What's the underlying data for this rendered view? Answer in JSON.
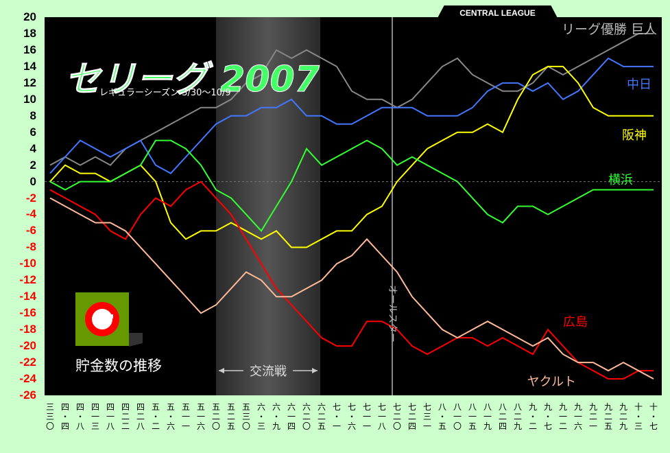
{
  "header": {
    "league": "CENTRAL LEAGUE"
  },
  "legend_box": {
    "label": "貯金数の推移"
  },
  "colors": {
    "background": "#ccffcc",
    "plot": "#000000",
    "neg_axis": "#ff0000",
    "logo_bg": "#669900",
    "logo_ring": "#ff0000"
  },
  "chart_data": {
    "type": "line",
    "title": "セリーグ 2007",
    "subtitle": "レギュラーシーズン 3/30〜10/9",
    "ylabel": "貯金数の推移",
    "ylim": [
      -26,
      20
    ],
    "yticks": [
      20,
      18,
      16,
      14,
      12,
      10,
      8,
      6,
      4,
      2,
      0,
      -2,
      -4,
      -6,
      -8,
      -10,
      -12,
      -14,
      -16,
      -18,
      -20,
      -22,
      -24,
      -26
    ],
    "x_dates": [
      [
        "三",
        "三",
        "〇"
      ],
      [
        "四",
        "・",
        "四"
      ],
      [
        "四",
        "・",
        "八"
      ],
      [
        "四",
        "一",
        "三"
      ],
      [
        "四",
        "一",
        "八"
      ],
      [
        "四",
        "二",
        "二"
      ],
      [
        "四",
        "二",
        "八"
      ],
      [
        "五",
        "・",
        "二"
      ],
      [
        "五",
        "・",
        "六"
      ],
      [
        "五",
        "一",
        "一"
      ],
      [
        "五",
        "一",
        "六"
      ],
      [
        "五",
        "二",
        "〇"
      ],
      [
        "五",
        "二",
        "五"
      ],
      [
        "五",
        "三",
        "〇"
      ],
      [
        "六",
        "・",
        "三"
      ],
      [
        "六",
        "・",
        "九"
      ],
      [
        "六",
        "一",
        "四"
      ],
      [
        "六",
        "二",
        "〇"
      ],
      [
        "六",
        "二",
        "五"
      ],
      [
        "七",
        "・",
        "一"
      ],
      [
        "七",
        "・",
        "六"
      ],
      [
        "七",
        "一",
        "一"
      ],
      [
        "七",
        "一",
        "八"
      ],
      [
        "七",
        "二",
        "〇"
      ],
      [
        "七",
        "二",
        "四"
      ],
      [
        "七",
        "三",
        "一"
      ],
      [
        "八",
        "・",
        "五"
      ],
      [
        "八",
        "一",
        "〇"
      ],
      [
        "八",
        "一",
        "五"
      ],
      [
        "八",
        "一",
        "九"
      ],
      [
        "八",
        "二",
        "四"
      ],
      [
        "八",
        "二",
        "九"
      ],
      [
        "九",
        "・",
        "二"
      ],
      [
        "九",
        "・",
        "七"
      ],
      [
        "九",
        "一",
        "二"
      ],
      [
        "九",
        "一",
        "六"
      ],
      [
        "九",
        "二",
        "一"
      ],
      [
        "九",
        "二",
        "五"
      ],
      [
        "九",
        "二",
        "九"
      ],
      [
        "十",
        "・",
        "三"
      ],
      [
        "十",
        "・",
        "七"
      ]
    ],
    "interleague_label": "交流戦",
    "interleague_range": [
      "五",
      "二",
      "二"
    ],
    "allstar_label": "オールスター",
    "champion_note": "リーグ優勝 巨人",
    "series": [
      {
        "name": "巨人",
        "color": "#888888",
        "values": [
          2,
          3,
          2,
          3,
          2,
          4,
          5,
          6,
          7,
          8,
          9,
          9,
          10,
          12,
          13,
          16,
          15,
          16,
          15,
          14,
          11,
          10,
          10,
          9,
          10,
          12,
          14,
          15,
          13,
          12,
          11,
          11,
          12,
          14,
          13,
          14,
          15,
          16,
          17,
          18,
          18
        ]
      },
      {
        "name": "中日",
        "color": "#4477ff",
        "values": [
          1,
          3,
          5,
          4,
          3,
          4,
          5,
          2,
          1,
          3,
          5,
          7,
          8,
          8,
          9,
          9,
          10,
          8,
          8,
          7,
          7,
          8,
          9,
          9,
          9,
          8,
          8,
          8,
          9,
          11,
          12,
          12,
          11,
          12,
          10,
          11,
          13,
          15,
          14,
          14,
          14
        ]
      },
      {
        "name": "阪神",
        "color": "#ffff00",
        "values": [
          0,
          2,
          1,
          1,
          0,
          1,
          2,
          0,
          -5,
          -7,
          -6,
          -6,
          -5,
          -6,
          -7,
          -6,
          -8,
          -8,
          -7,
          -6,
          -6,
          -4,
          -3,
          0,
          2,
          4,
          5,
          6,
          6,
          7,
          6,
          10,
          13,
          14,
          14,
          12,
          9,
          8,
          8,
          8,
          8
        ]
      },
      {
        "name": "横浜",
        "color": "#33ff33",
        "values": [
          0,
          -1,
          0,
          0,
          0,
          1,
          2,
          5,
          5,
          4,
          2,
          -1,
          -2,
          -4,
          -6,
          -3,
          0,
          4,
          2,
          3,
          4,
          5,
          4,
          2,
          3,
          2,
          1,
          0,
          -2,
          -4,
          -5,
          -3,
          -3,
          -4,
          -3,
          -2,
          -1,
          -1,
          -1,
          -1,
          -1
        ]
      },
      {
        "name": "広島",
        "color": "#ff0000",
        "values": [
          -1,
          -2,
          -3,
          -4,
          -6,
          -7,
          -4,
          -2,
          -3,
          -1,
          0,
          -2,
          -4,
          -7,
          -10,
          -13,
          -15,
          -17,
          -19,
          -20,
          -20,
          -17,
          -17,
          -18,
          -20,
          -21,
          -20,
          -19,
          -19,
          -20,
          -19,
          -20,
          -21,
          -18,
          -20,
          -22,
          -23,
          -24,
          -24,
          -23,
          -23
        ]
      },
      {
        "name": "ヤクルト",
        "color": "#ffbb99",
        "values": [
          -2,
          -3,
          -4,
          -5,
          -5,
          -6,
          -8,
          -10,
          -12,
          -14,
          -16,
          -15,
          -13,
          -11,
          -12,
          -14,
          -14,
          -13,
          -12,
          -10,
          -9,
          -7,
          -9,
          -11,
          -14,
          -16,
          -18,
          -19,
          -18,
          -17,
          -18,
          -19,
          -20,
          -19,
          -21,
          -22,
          -22,
          -23,
          -22,
          -23,
          -24
        ]
      }
    ]
  }
}
